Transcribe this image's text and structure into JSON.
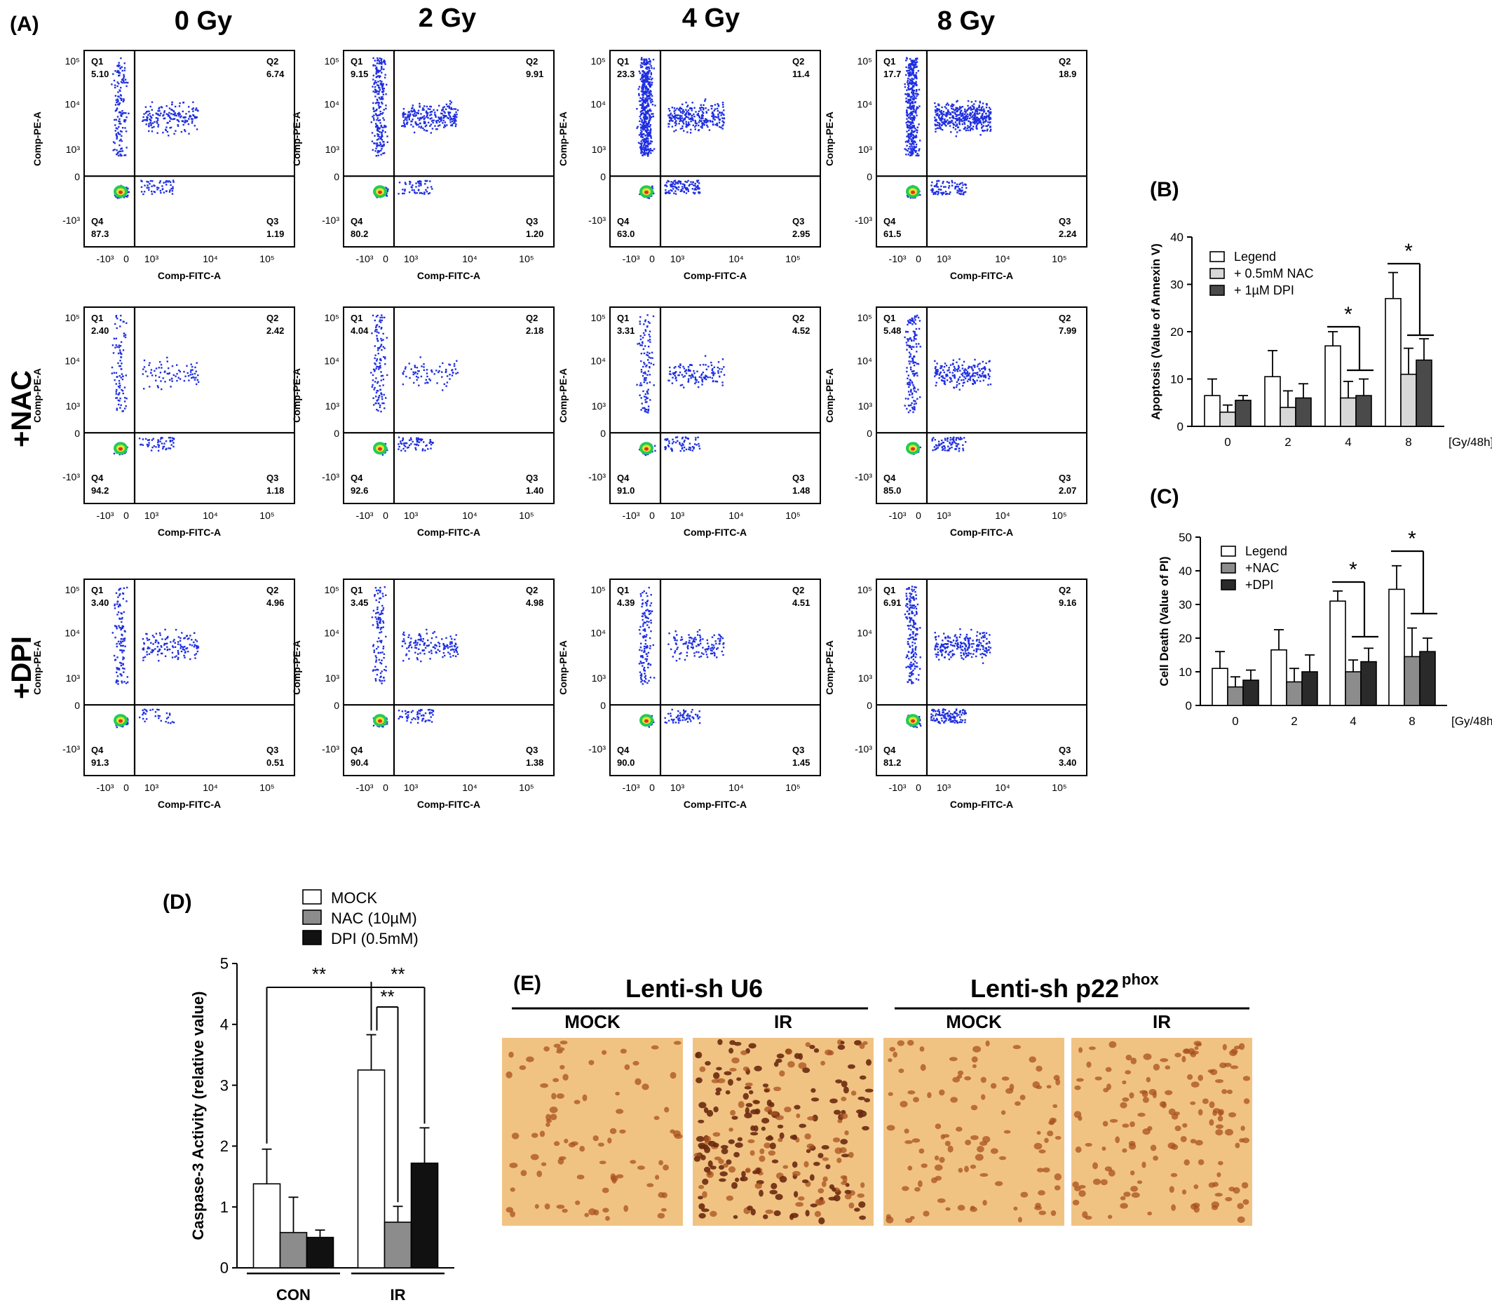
{
  "figure": {
    "panel_labels": [
      "(A)",
      "(B)",
      "(C)",
      "(D)",
      "(E)"
    ],
    "dose_headers": [
      "0 Gy",
      "2 Gy",
      "4 Gy",
      "8 Gy"
    ],
    "row_labels": [
      "",
      "+NAC",
      "+DPI"
    ],
    "flow_axes": {
      "x_label": "Comp-FITC-A",
      "y_label": "Comp-PE-A",
      "x_ticks": [
        "-10³",
        "0",
        "10³",
        "10⁴",
        "10⁵"
      ],
      "y_ticks": [
        "10⁵",
        "10⁴",
        "10³",
        "0",
        "-10³"
      ],
      "quadrant_names": [
        "Q1",
        "Q2",
        "Q3",
        "Q4"
      ]
    },
    "flow_quadrants": [
      [
        {
          "q1": "5.10",
          "q2": "6.74",
          "q3": "1.19",
          "q4": "87.3"
        },
        {
          "q1": "9.15",
          "q2": "9.91",
          "q3": "1.20",
          "q4": "80.2"
        },
        {
          "q1": "23.3",
          "q2": "11.4",
          "q3": "2.95",
          "q4": "63.0"
        },
        {
          "q1": "17.7",
          "q2": "18.9",
          "q3": "2.24",
          "q4": "61.5"
        }
      ],
      [
        {
          "q1": "2.40",
          "q2": "2.42",
          "q3": "1.18",
          "q4": "94.2"
        },
        {
          "q1": "4.04",
          "q2": "2.18",
          "q3": "1.40",
          "q4": "92.6"
        },
        {
          "q1": "3.31",
          "q2": "4.52",
          "q3": "1.48",
          "q4": "91.0"
        },
        {
          "q1": "5.48",
          "q2": "7.99",
          "q3": "2.07",
          "q4": "85.0"
        }
      ],
      [
        {
          "q1": "3.40",
          "q2": "4.96",
          "q3": "0.51",
          "q4": "91.3"
        },
        {
          "q1": "3.45",
          "q2": "4.98",
          "q3": "1.38",
          "q4": "90.4"
        },
        {
          "q1": "4.39",
          "q2": "4.51",
          "q3": "1.45",
          "q4": "90.0"
        },
        {
          "q1": "6.91",
          "q2": "9.16",
          "q3": "3.40",
          "q4": "81.2"
        }
      ]
    ],
    "panel_e": {
      "group_titles": [
        "Lenti-sh U6",
        "Lenti-sh p22",
        "phox"
      ],
      "image_labels": [
        "MOCK",
        "IR",
        "MOCK",
        "IR"
      ]
    },
    "colors": {
      "scatter_blue": "#1f2fe0",
      "density_green": "#22cc55",
      "density_yellow": "#e8e030",
      "density_red": "#e03020",
      "bar_white": "#ffffff",
      "bar_light_gray": "#d8d8d8",
      "bar_mid_gray": "#8c8c8c",
      "bar_dark_gray": "#4a4a4a",
      "bar_black": "#111111",
      "ihc_background": "#f1c383",
      "ihc_nuclei": "#a8521f"
    }
  },
  "chart_data": [
    {
      "type": "bar",
      "panel": "(B)",
      "categories": [
        "0",
        "2",
        "4",
        "8"
      ],
      "x_unit_label": "[Gy/48h]",
      "ylabel": "Apoptosis (Value of Annexin V)",
      "ylim": [
        0,
        40
      ],
      "yticks": [
        "0",
        "10",
        "20",
        "30",
        "40"
      ],
      "series": [
        {
          "name": "Legend",
          "values": [
            6.5,
            10.5,
            17,
            27
          ],
          "errors": [
            3.5,
            5.5,
            3,
            5.5
          ]
        },
        {
          "name": "+ 0.5mM NAC",
          "values": [
            3,
            4,
            6,
            11
          ],
          "errors": [
            1.5,
            3.5,
            3.5,
            5.5
          ]
        },
        {
          "name": "+ 1µM DPI",
          "values": [
            5.5,
            6,
            6.5,
            14
          ],
          "errors": [
            1,
            3,
            3.5,
            4.5
          ]
        }
      ],
      "significance": [
        "*",
        "*"
      ],
      "legend": "top-left"
    },
    {
      "type": "bar",
      "panel": "(C)",
      "categories": [
        "0",
        "2",
        "4",
        "8"
      ],
      "x_unit_label": "[Gy/48h]",
      "ylabel": "Cell Death (Value of PI)",
      "ylim": [
        0,
        50
      ],
      "yticks": [
        "0",
        "10",
        "20",
        "30",
        "40",
        "50"
      ],
      "series": [
        {
          "name": "Legend",
          "values": [
            11,
            16.5,
            31,
            34.5
          ],
          "errors": [
            5,
            6,
            3,
            7
          ]
        },
        {
          "name": "+NAC",
          "values": [
            5.5,
            7,
            10,
            14.5
          ],
          "errors": [
            3,
            4,
            3.5,
            8.5
          ]
        },
        {
          "name": "+DPI",
          "values": [
            7.5,
            10,
            13,
            16
          ],
          "errors": [
            3,
            5,
            4,
            4
          ]
        }
      ],
      "significance": [
        "*",
        "*"
      ],
      "legend": "top-left"
    },
    {
      "type": "bar",
      "panel": "(D)",
      "categories": [
        "CON",
        "IR"
      ],
      "ylabel": "Caspase-3 Activity (relative value)",
      "ylim": [
        0,
        5
      ],
      "yticks": [
        "0",
        "1",
        "2",
        "3",
        "4",
        "5"
      ],
      "series": [
        {
          "name": "MOCK",
          "values": [
            1.38,
            3.25
          ],
          "errors": [
            0.57,
            0.58
          ]
        },
        {
          "name": "NAC (10µM)",
          "values": [
            0.58,
            0.75
          ],
          "errors": [
            0.58,
            0.26
          ]
        },
        {
          "name": "DPI (0.5mM)",
          "values": [
            0.5,
            1.72
          ],
          "errors": [
            0.12,
            0.58
          ]
        }
      ],
      "significance": [
        "**",
        "**",
        "**"
      ],
      "legend": "top"
    }
  ]
}
